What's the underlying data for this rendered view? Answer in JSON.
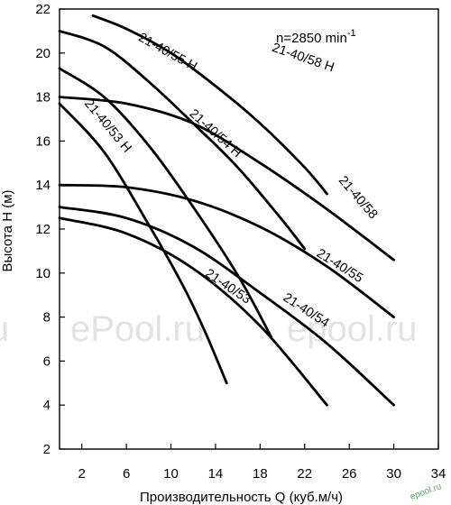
{
  "chart_data": {
    "type": "line",
    "title": "",
    "xlabel": "Производительность Q (куб.м/ч)",
    "ylabel": "Высота H (м)",
    "xlim": [
      0,
      34
    ],
    "ylim": [
      2,
      22
    ],
    "x_ticks": [
      "2",
      "6",
      "10",
      "14",
      "18",
      "22",
      "26",
      "30",
      "34"
    ],
    "y_ticks": [
      "22",
      "20",
      "18",
      "16",
      "14",
      "12",
      "10",
      "8",
      "6",
      "4",
      "2"
    ],
    "x_tick_values": [
      2,
      6,
      10,
      14,
      18,
      22,
      26,
      30,
      34
    ],
    "y_tick_values": [
      22,
      20,
      18,
      16,
      14,
      12,
      10,
      8,
      6,
      4,
      2
    ],
    "grid": false,
    "annotation": "n=2850 min",
    "annotation_superscript": "-1",
    "series": [
      {
        "name": "21-40/58 H",
        "x": [
          3,
          6,
          10,
          14,
          18,
          22,
          24
        ],
        "y": [
          21.7,
          21.1,
          20.0,
          18.5,
          16.8,
          14.8,
          13.6
        ],
        "label_x": 19,
        "label_y": 20.1,
        "label_angle": 19
      },
      {
        "name": "21-40/55 H",
        "x": [
          0,
          4,
          8,
          12,
          16,
          20,
          22
        ],
        "y": [
          21.0,
          20.3,
          18.7,
          16.8,
          14.8,
          12.4,
          11.1
        ],
        "label_x": 7,
        "label_y": 20.6,
        "label_angle": 29
      },
      {
        "name": "21-40/54 H",
        "x": [
          0,
          4,
          8,
          12,
          16,
          19
        ],
        "y": [
          19.3,
          18.0,
          15.8,
          13.0,
          9.9,
          7.1
        ],
        "label_x": 11.6,
        "label_y": 17.2,
        "label_angle": 42
      },
      {
        "name": "21-40/53 H",
        "x": [
          0,
          4,
          8,
          11,
          13,
          15
        ],
        "y": [
          17.7,
          15.5,
          12.2,
          9.5,
          7.4,
          5.0
        ],
        "label_x": 2.2,
        "label_y": 17.7,
        "label_angle": 50
      },
      {
        "name": "21-40/58",
        "x": [
          0,
          6,
          12,
          18,
          24,
          30
        ],
        "y": [
          18.0,
          17.7,
          16.8,
          15.0,
          12.9,
          10.6
        ],
        "label_x": 25,
        "label_y": 14.2,
        "label_angle": 49
      },
      {
        "name": "21-40/55",
        "x": [
          0,
          6,
          12,
          18,
          24,
          30
        ],
        "y": [
          14.0,
          13.9,
          13.3,
          12.1,
          10.3,
          8.0
        ],
        "label_x": 23,
        "label_y": 10.8,
        "label_angle": 32
      },
      {
        "name": "21-40/54",
        "x": [
          0,
          6,
          12,
          18,
          24,
          30
        ],
        "y": [
          13.0,
          12.5,
          11.2,
          9.1,
          6.8,
          4.0
        ],
        "label_x": 20,
        "label_y": 8.8,
        "label_angle": 33
      },
      {
        "name": "21-40/53",
        "x": [
          0,
          6,
          12,
          18,
          24
        ],
        "y": [
          12.5,
          11.8,
          10.2,
          7.6,
          4.0
        ],
        "label_x": 13,
        "label_y": 9.9,
        "label_angle": 34
      }
    ]
  },
  "watermarks": [
    "u",
    "ePool.ru",
    "epool.ru",
    "epool.ru"
  ]
}
